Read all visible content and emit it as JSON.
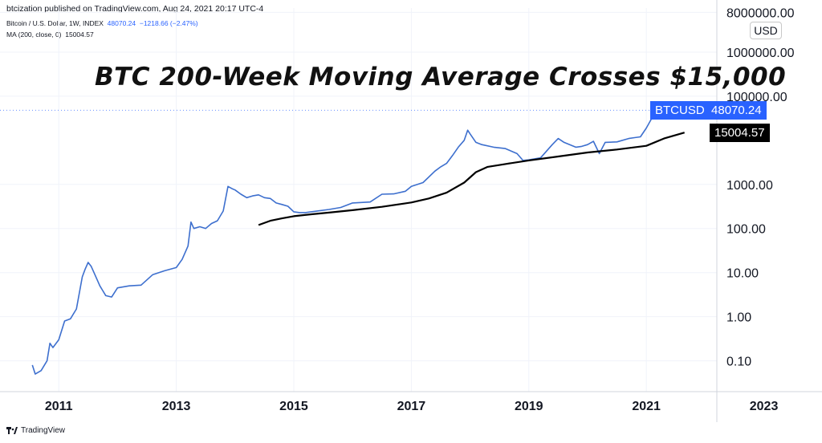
{
  "header": {
    "publisher": "btcization published on TradingView.com, Aug 24, 2021 20:17 UTC-4",
    "symbol_desc": "Bitcoin / U.S. Dollar, 1W, INDEX",
    "last_price": "48070.24",
    "change": "−1218.66 (−2.47%)",
    "ma_desc": "MA (200, close, 0)",
    "ma_value": "15004.57"
  },
  "footer": {
    "brand": "TradingView",
    "logo_icon": "tradingview-logo-icon"
  },
  "price_scale": {
    "currency_label": "USD"
  },
  "colors": {
    "price_line": "#3d6fce",
    "ma_line": "#000000",
    "btc_tag": "#2962ff",
    "ma_tag": "#000000"
  },
  "chart_data": {
    "type": "line",
    "title": "BTC 200-Week Moving Average Crosses $15,000",
    "xlabel": "",
    "ylabel": "",
    "y_scale": "log",
    "ylim": [
      0.02,
      10000000
    ],
    "xlim": [
      2010.0,
      2022.2
    ],
    "x_ticks": [
      "2011",
      "2013",
      "2015",
      "2017",
      "2019",
      "2021",
      "2023"
    ],
    "y_ticks": [
      "0.10",
      "1.00",
      "10.00",
      "100.00",
      "1000.00",
      "100000.00",
      "1000000.00",
      "8000000.00"
    ],
    "grid": true,
    "legend": "none",
    "series": [
      {
        "name": "BTCUSD",
        "last_label": "48070.24",
        "x": [
          2010.55,
          2010.6,
          2010.7,
          2010.8,
          2010.85,
          2010.9,
          2011.0,
          2011.1,
          2011.2,
          2011.3,
          2011.4,
          2011.45,
          2011.5,
          2011.55,
          2011.6,
          2011.7,
          2011.8,
          2011.9,
          2012.0,
          2012.2,
          2012.4,
          2012.6,
          2012.8,
          2013.0,
          2013.1,
          2013.2,
          2013.25,
          2013.3,
          2013.4,
          2013.5,
          2013.6,
          2013.7,
          2013.8,
          2013.88,
          2013.95,
          2014.0,
          2014.1,
          2014.2,
          2014.3,
          2014.4,
          2014.5,
          2014.6,
          2014.7,
          2014.8,
          2014.9,
          2015.0,
          2015.1,
          2015.2,
          2015.4,
          2015.6,
          2015.8,
          2016.0,
          2016.3,
          2016.5,
          2016.7,
          2016.9,
          2017.0,
          2017.2,
          2017.4,
          2017.5,
          2017.6,
          2017.7,
          2017.8,
          2017.9,
          2017.96,
          2018.0,
          2018.1,
          2018.2,
          2018.4,
          2018.6,
          2018.8,
          2018.9,
          2019.0,
          2019.2,
          2019.4,
          2019.5,
          2019.6,
          2019.8,
          2019.9,
          2020.0,
          2020.1,
          2020.2,
          2020.3,
          2020.5,
          2020.7,
          2020.8,
          2020.9,
          2021.0,
          2021.1,
          2021.2,
          2021.3,
          2021.4,
          2021.5,
          2021.6,
          2021.65
        ],
        "y": [
          0.08,
          0.05,
          0.06,
          0.1,
          0.25,
          0.2,
          0.3,
          0.8,
          0.9,
          1.5,
          8,
          12,
          17,
          14,
          10,
          5,
          3,
          2.8,
          4.5,
          5,
          5.2,
          9,
          11,
          13,
          20,
          40,
          140,
          100,
          110,
          100,
          130,
          150,
          250,
          900,
          800,
          750,
          600,
          500,
          550,
          580,
          500,
          480,
          380,
          350,
          320,
          240,
          230,
          230,
          250,
          270,
          300,
          380,
          400,
          600,
          610,
          700,
          900,
          1100,
          2000,
          2500,
          3000,
          4500,
          7000,
          10000,
          17000,
          14000,
          9000,
          8000,
          7000,
          6500,
          5000,
          3500,
          3600,
          4000,
          8000,
          11000,
          9000,
          7000,
          7300,
          8000,
          9500,
          5000,
          9000,
          9200,
          11000,
          11500,
          12000,
          19000,
          33000,
          45000,
          58000,
          60000,
          35000,
          40000,
          48070
        ]
      },
      {
        "name": "MA (200, close, 0)",
        "last_label": "15004.57",
        "x": [
          2014.4,
          2014.6,
          2014.8,
          2015.0,
          2015.3,
          2015.6,
          2016.0,
          2016.5,
          2017.0,
          2017.3,
          2017.6,
          2017.9,
          2018.1,
          2018.3,
          2018.6,
          2019.0,
          2019.5,
          2020.0,
          2020.5,
          2021.0,
          2021.3,
          2021.65
        ],
        "y": [
          120,
          150,
          170,
          190,
          210,
          230,
          260,
          310,
          390,
          480,
          650,
          1100,
          1900,
          2500,
          2900,
          3500,
          4300,
          5300,
          6200,
          7500,
          11000,
          15004
        ]
      }
    ]
  }
}
